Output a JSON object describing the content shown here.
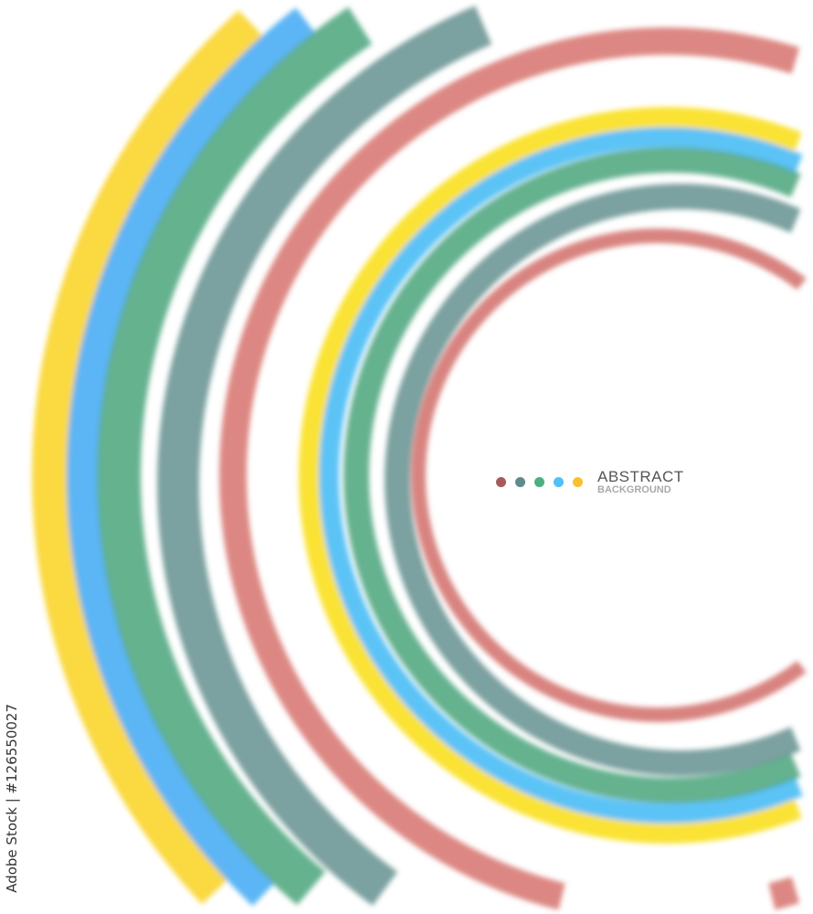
{
  "logo": {
    "line1": "ABSTRACT",
    "line2": "BACKGROUND"
  },
  "dot_colors": [
    "#a85a5a",
    "#5f8a8e",
    "#4caf7f",
    "#4fc1f5",
    "#f7c130"
  ],
  "ring_colors": {
    "yellow": "#f9d21e",
    "blue": "#3fa9f5",
    "green": "#3f9f73",
    "teal": "#5b8a88",
    "red": "#c8504a",
    "pink": "#e7a09c"
  },
  "watermark": {
    "credit": "Adobe Stock | #126550027"
  }
}
